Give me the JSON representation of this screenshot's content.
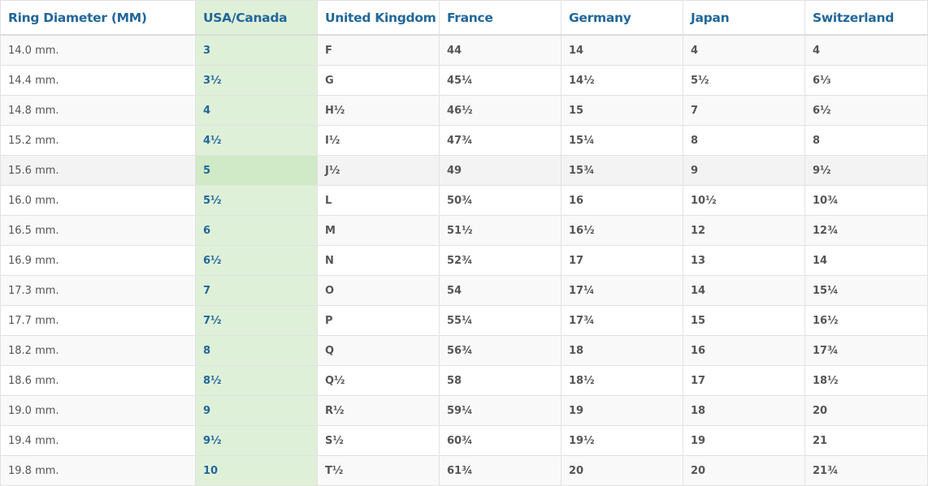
{
  "table": {
    "headers": [
      "Ring Diameter (MM)",
      "USA/Canada",
      "United Kingdom",
      "France",
      "Germany",
      "Japan",
      "Switzerland"
    ],
    "highlight_column": "USA/Canada",
    "highlight_color": "#dff0d8",
    "header_color": "#22679a",
    "rows": [
      [
        "14.0 mm.",
        "3",
        "F",
        "44",
        "14",
        "4",
        "4"
      ],
      [
        "14.4 mm.",
        "3½",
        "G",
        "45¼",
        "14½",
        "5½",
        "6⅓"
      ],
      [
        "14.8 mm.",
        "4",
        "H½",
        "46½",
        "15",
        "7",
        "6½"
      ],
      [
        "15.2 mm.",
        "4½",
        "I½",
        "47¾",
        "15¼",
        "8",
        "8"
      ],
      [
        "15.6 mm.",
        "5",
        "J½",
        "49",
        "15¾",
        "9",
        "9½"
      ],
      [
        "16.0 mm.",
        "5½",
        "L",
        "50¾",
        "16",
        "10½",
        "10¾"
      ],
      [
        "16.5 mm.",
        "6",
        "M",
        "51½",
        "16½",
        "12",
        "12¾"
      ],
      [
        "16.9 mm.",
        "6½",
        "N",
        "52¾",
        "17",
        "13",
        "14"
      ],
      [
        "17.3 mm.",
        "7",
        "O",
        "54",
        "17¼",
        "14",
        "15¼"
      ],
      [
        "17.7 mm.",
        "7½",
        "P",
        "55¼",
        "17¾",
        "15",
        "16½"
      ],
      [
        "18.2 mm.",
        "8",
        "Q",
        "56¾",
        "18",
        "16",
        "17¾"
      ],
      [
        "18.6 mm.",
        "8½",
        "Q½",
        "58",
        "18½",
        "17",
        "18½"
      ],
      [
        "19.0 mm.",
        "9",
        "R½",
        "59¼",
        "19",
        "18",
        "20"
      ],
      [
        "19.4 mm.",
        "9½",
        "S½",
        "60¾",
        "19½",
        "19",
        "21"
      ],
      [
        "19.8 mm.",
        "10",
        "T½",
        "61¾",
        "20",
        "20",
        "21¾"
      ]
    ],
    "hovered_row": 4
  }
}
